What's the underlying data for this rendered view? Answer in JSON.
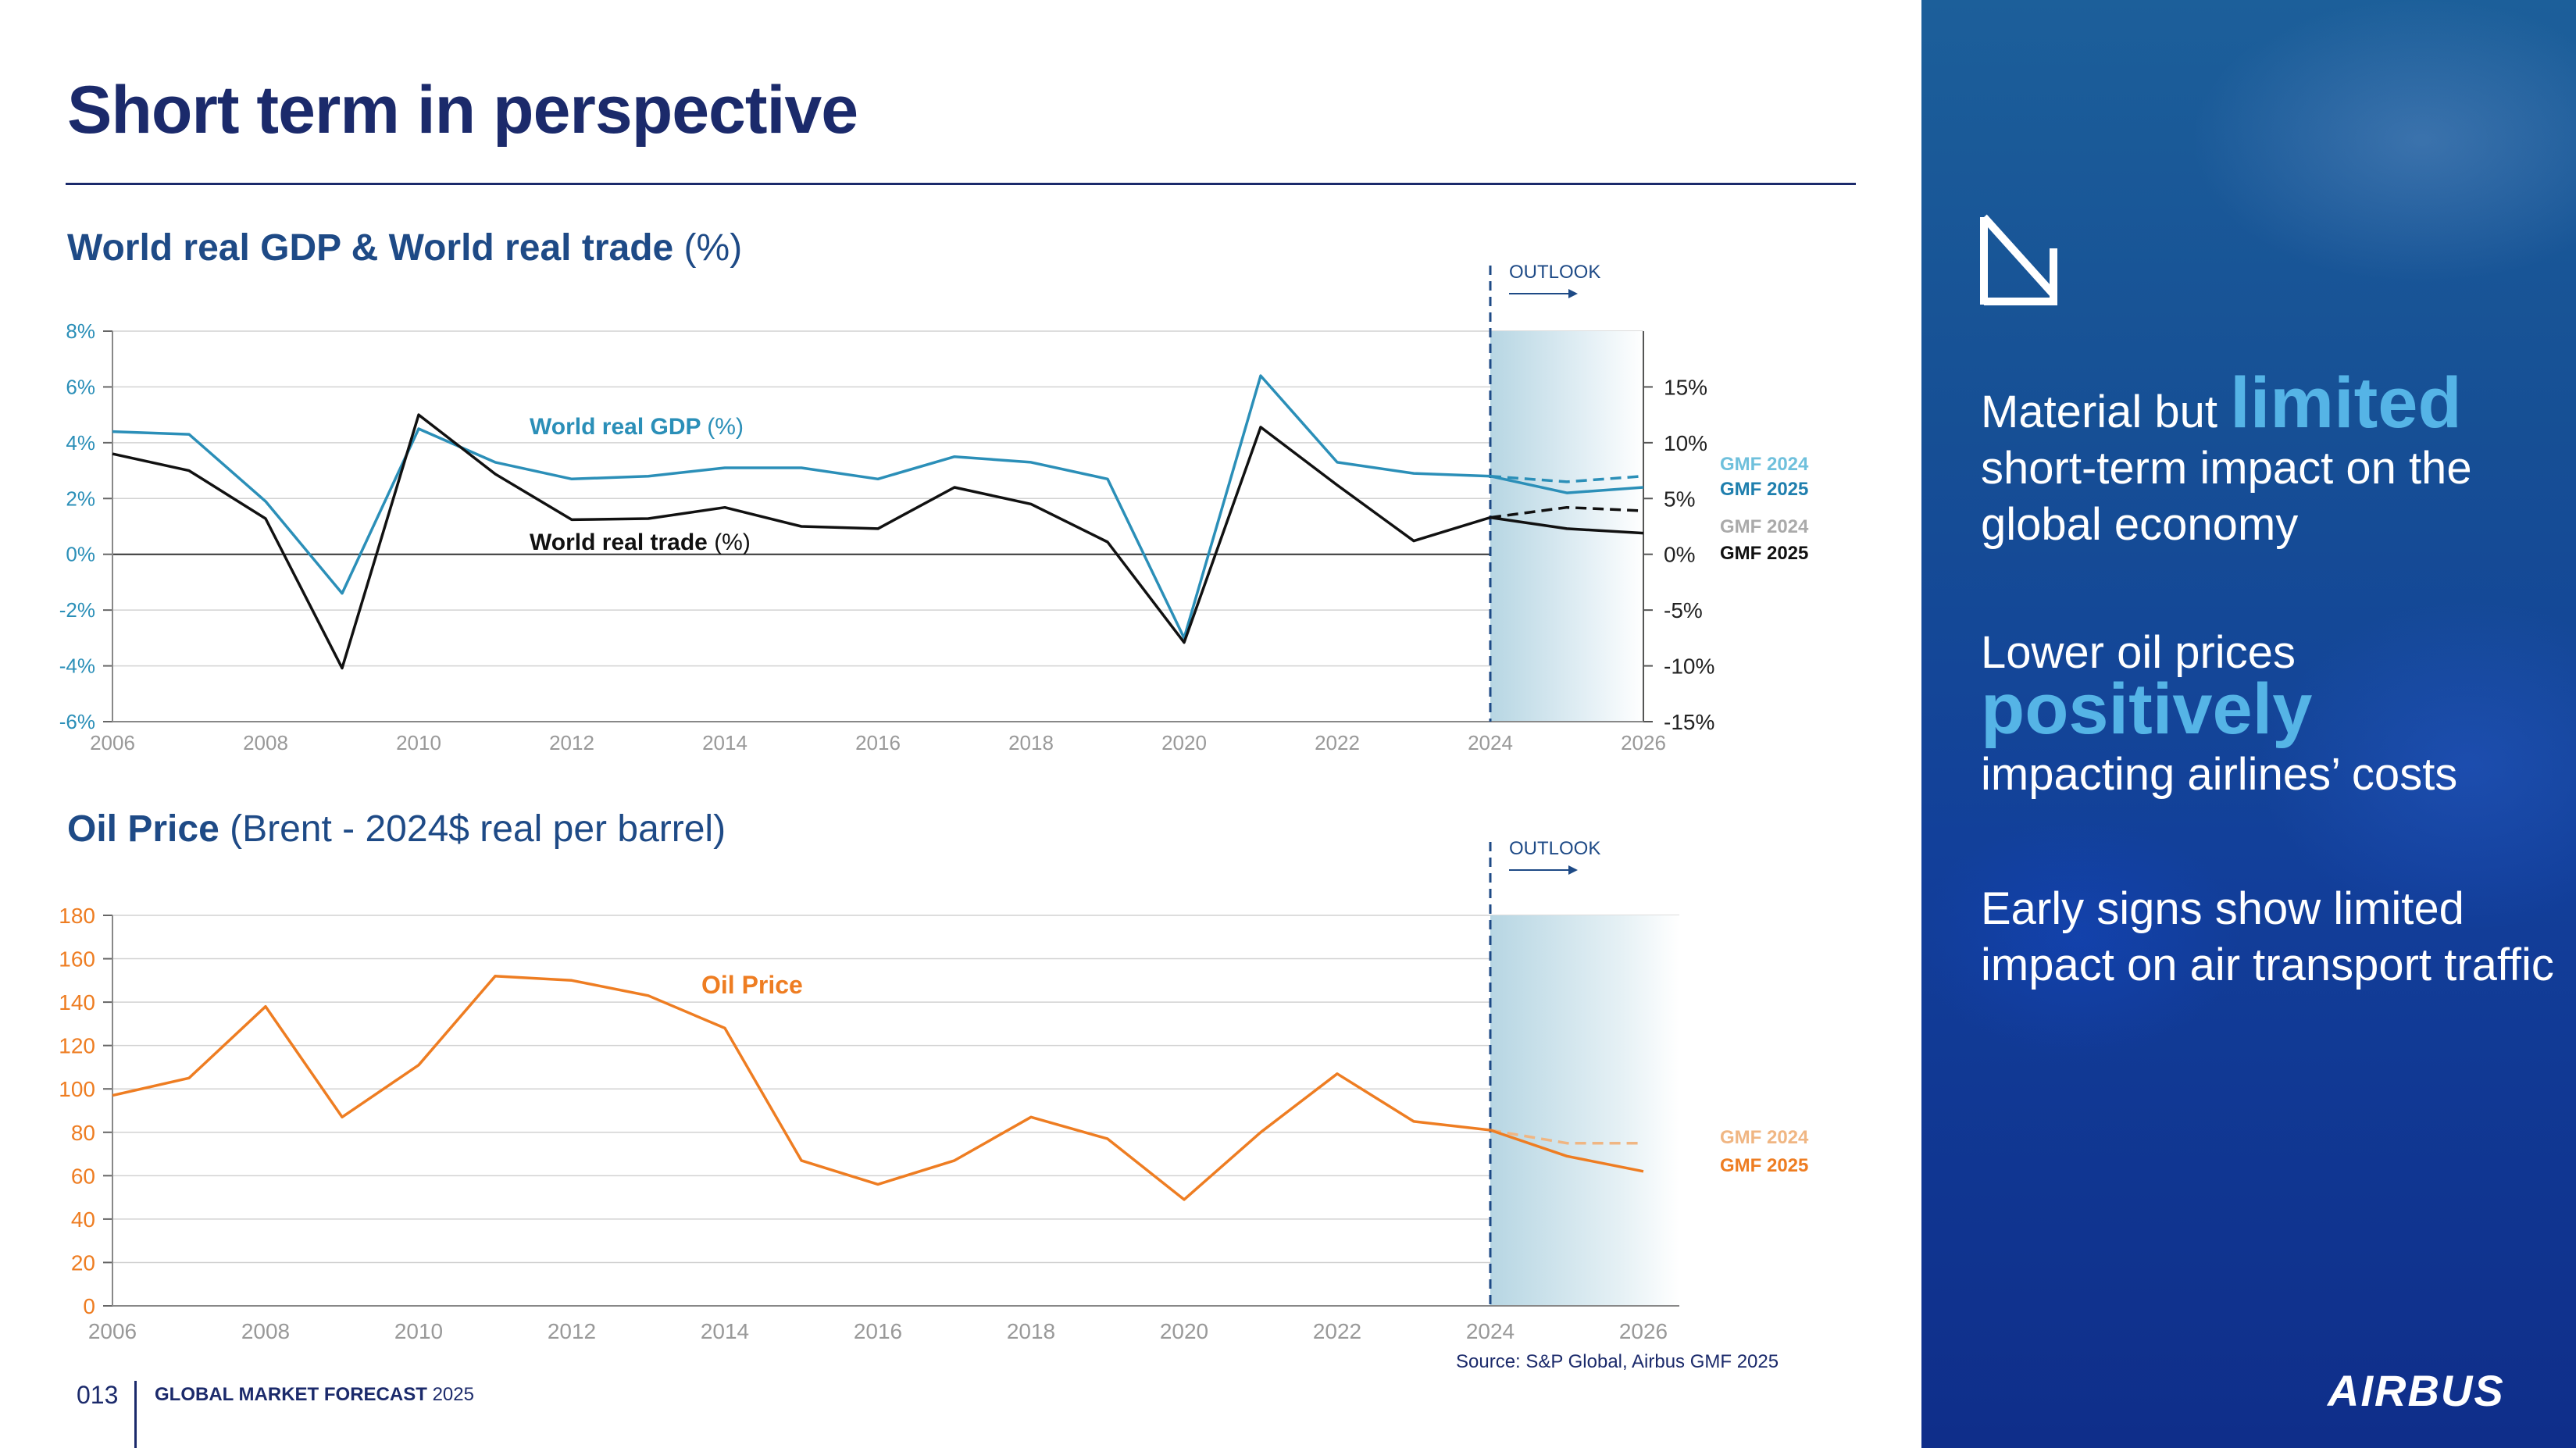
{
  "page": {
    "title": "Short term in perspective",
    "footer_num": "013",
    "footer_title": "GLOBAL MARKET FORECAST",
    "footer_year": "2025",
    "source": "Source: S&P Global, Airbus GMF 2025"
  },
  "panel": {
    "line1_pre": "Material but ",
    "line1_big": "limited",
    "line1_post": "short-term impact on the global economy",
    "line2_pre": "Lower oil prices",
    "line2_big": "positively",
    "line2_post": "impacting airlines’ costs",
    "line3": "Early signs show limited impact on air transport traffic",
    "logo": "AIRBUS"
  },
  "chart_data": [
    {
      "type": "line",
      "title_bold": "World real GDP & World real trade",
      "title_rest": "(%)",
      "outlook_label": "OUTLOOK",
      "x": [
        2006,
        2007,
        2008,
        2009,
        2010,
        2011,
        2012,
        2013,
        2014,
        2015,
        2016,
        2017,
        2018,
        2019,
        2020,
        2021,
        2022,
        2023,
        2024
      ],
      "x_ticks": [
        "2006",
        "2008",
        "2010",
        "2012",
        "2014",
        "2016",
        "2018",
        "2020",
        "2022",
        "2024",
        "2026"
      ],
      "left_axis": {
        "ylim": [
          -6,
          8
        ],
        "ticks": [
          "8%",
          "6%",
          "4%",
          "2%",
          "0%",
          "-2%",
          "-4%",
          "-6%"
        ],
        "tick_values": [
          8,
          6,
          4,
          2,
          0,
          -2,
          -4,
          -6
        ]
      },
      "right_axis": {
        "ylim": [
          -15,
          20
        ],
        "ticks": [
          "15%",
          "10%",
          "5%",
          "0%",
          "-5%",
          "-10%",
          "-15%"
        ],
        "tick_values": [
          15,
          10,
          5,
          0,
          -5,
          -10,
          -15
        ]
      },
      "series": [
        {
          "name": "World real GDP",
          "label_bold": "World real GDP",
          "label_rest": "(%)",
          "axis": "left",
          "color": "#2b8fb8",
          "values": [
            4.4,
            4.3,
            1.9,
            -1.4,
            4.5,
            3.3,
            2.7,
            2.8,
            3.1,
            3.1,
            2.7,
            3.5,
            3.3,
            2.7,
            -3.0,
            6.4,
            3.3,
            2.9,
            2.8
          ]
        },
        {
          "name": "World real trade",
          "label_bold": "World real trade",
          "label_rest": "(%)",
          "axis": "right",
          "color": "#111111",
          "values": [
            9.0,
            7.5,
            3.2,
            -10.2,
            12.5,
            7.2,
            3.1,
            3.2,
            4.2,
            2.5,
            2.3,
            6.0,
            4.5,
            1.1,
            -7.9,
            11.4,
            6.2,
            1.2,
            3.3
          ]
        },
        {
          "name": "GDP GMF 2024",
          "axis": "left",
          "color": "#2b8fb8",
          "dashed": true,
          "x": [
            2024,
            2025,
            2026
          ],
          "values": [
            2.8,
            2.6,
            2.8
          ]
        },
        {
          "name": "GDP GMF 2025",
          "axis": "left",
          "color": "#2b8fb8",
          "x": [
            2024,
            2025,
            2026
          ],
          "values": [
            2.8,
            2.2,
            2.4
          ]
        },
        {
          "name": "Trade GMF 2024",
          "axis": "right",
          "color": "#111111",
          "dashed": true,
          "x": [
            2024,
            2025,
            2026
          ],
          "values": [
            3.3,
            4.2,
            3.9
          ]
        },
        {
          "name": "Trade GMF 2025",
          "axis": "right",
          "color": "#111111",
          "x": [
            2024,
            2025,
            2026
          ],
          "values": [
            3.3,
            2.3,
            1.9
          ]
        }
      ],
      "legend": {
        "gdp_2024": "GMF 2024",
        "gdp_2025": "GMF 2025",
        "trade_2024": "GMF 2024",
        "trade_2025": "GMF 2025"
      }
    },
    {
      "type": "line",
      "title_bold": "Oil Price",
      "title_rest": "(Brent - 2024$ real per barrel)",
      "outlook_label": "OUTLOOK",
      "x": [
        2006,
        2007,
        2008,
        2009,
        2010,
        2011,
        2012,
        2013,
        2014,
        2015,
        2016,
        2017,
        2018,
        2019,
        2020,
        2021,
        2022,
        2023,
        2024
      ],
      "x_ticks": [
        "2006",
        "2008",
        "2010",
        "2012",
        "2014",
        "2016",
        "2018",
        "2020",
        "2022",
        "2024",
        "2026"
      ],
      "ylim": [
        0,
        180
      ],
      "y_ticks": [
        "180",
        "160",
        "140",
        "120",
        "100",
        "80",
        "60",
        "40",
        "20",
        "0"
      ],
      "y_tick_values": [
        180,
        160,
        140,
        120,
        100,
        80,
        60,
        40,
        20,
        0
      ],
      "series": [
        {
          "name": "Oil Price",
          "color": "#ee7d22",
          "values": [
            97,
            105,
            138,
            87,
            111,
            152,
            150,
            143,
            128,
            67,
            56,
            67,
            87,
            77,
            49,
            80,
            107,
            85,
            81
          ]
        },
        {
          "name": "GMF 2024",
          "color": "#f0b683",
          "dashed": true,
          "x": [
            2024,
            2025,
            2026
          ],
          "values": [
            81,
            75,
            75
          ]
        },
        {
          "name": "GMF 2025",
          "color": "#ee7d22",
          "x": [
            2024,
            2025,
            2026
          ],
          "values": [
            81,
            69,
            62
          ]
        }
      ],
      "legend": {
        "gmf_2024": "GMF 2024",
        "gmf_2025": "GMF 2025"
      }
    }
  ]
}
